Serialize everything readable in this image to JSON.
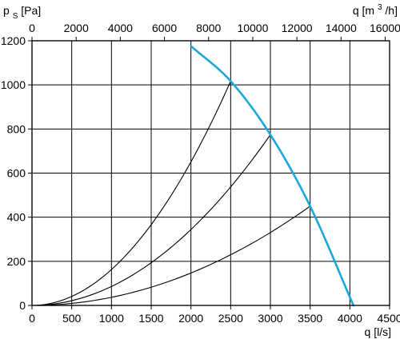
{
  "chart_data": {
    "type": "line",
    "grid": true,
    "axes": {
      "x_bottom": {
        "label": "q [l/s]",
        "range": [
          0,
          4500
        ],
        "ticks": [
          0,
          500,
          1000,
          1500,
          2000,
          2500,
          3000,
          3500,
          4000,
          4500
        ]
      },
      "x_top": {
        "label_main": "q [m",
        "label_sup": "3",
        "label_tail": "/h]",
        "range": [
          0,
          16200
        ],
        "ticks": [
          0,
          2000,
          4000,
          6000,
          8000,
          10000,
          12000,
          14000,
          16000
        ]
      },
      "y_left": {
        "label_main": "p",
        "label_sub": "S",
        "label_tail": " [Pa]",
        "range": [
          0,
          1200
        ],
        "ticks": [
          0,
          200,
          400,
          600,
          800,
          1000,
          1200
        ]
      }
    },
    "fan_curve": {
      "color": "#1aa7dc",
      "points": [
        {
          "x": 2000,
          "y": 1176
        },
        {
          "x": 2500,
          "y": 1017
        },
        {
          "x": 3000,
          "y": 774
        },
        {
          "x": 3500,
          "y": 450
        },
        {
          "x": 4045,
          "y": 0
        }
      ]
    },
    "system_curves": [
      {
        "color": "#000000",
        "x_end": 2500,
        "y_end": 1017
      },
      {
        "color": "#000000",
        "x_end": 3000,
        "y_end": 774
      },
      {
        "color": "#000000",
        "x_end": 3500,
        "y_end": 450
      }
    ]
  }
}
